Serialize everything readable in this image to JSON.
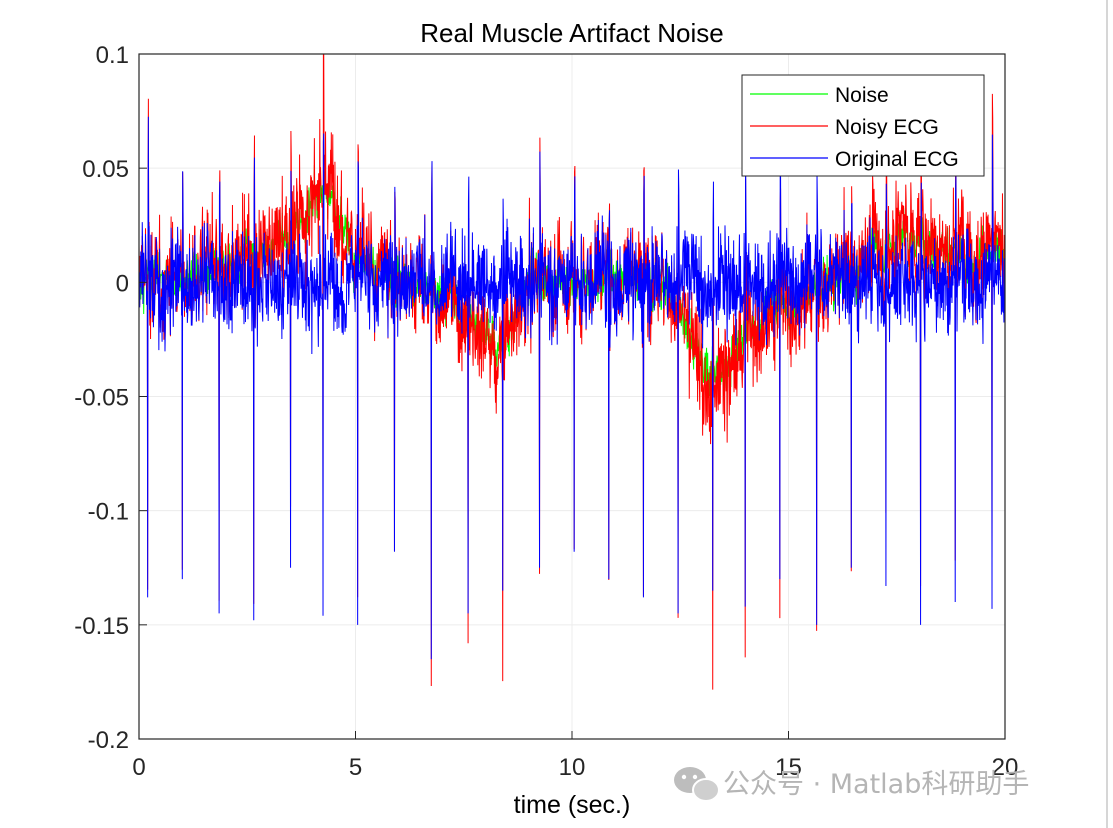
{
  "chart_data": {
    "type": "line",
    "title": "Real Muscle Artifact Noise",
    "xlabel": "time (sec.)",
    "ylabel": "",
    "xlim": [
      0,
      20
    ],
    "ylim": [
      -0.2,
      0.1
    ],
    "xticks": [
      0,
      5,
      10,
      15,
      20
    ],
    "xtick_labels": [
      "0",
      "5",
      "10",
      "15",
      "20"
    ],
    "yticks": [
      0.1,
      0.05,
      0,
      -0.05,
      -0.1,
      -0.15,
      -0.2
    ],
    "ytick_labels": [
      "0.1",
      "0.05",
      "0",
      "-0.05",
      "-0.1",
      "-0.15",
      "-0.2"
    ],
    "grid": true,
    "legend_position": "top-right",
    "r_peak_times": [
      0.2,
      1.0,
      1.85,
      2.65,
      3.5,
      4.25,
      5.05,
      5.9,
      6.75,
      7.6,
      8.4,
      9.25,
      10.05,
      10.85,
      11.65,
      12.45,
      13.25,
      14.0,
      14.8,
      15.65,
      16.45,
      17.25,
      18.05,
      18.85,
      19.7
    ],
    "series": [
      {
        "name": "Noise",
        "color": "#00ff00",
        "description_points": [
          [
            0,
            0.0
          ],
          [
            2,
            0.005
          ],
          [
            3.5,
            0.02
          ],
          [
            4.2,
            0.04
          ],
          [
            4.6,
            0.035
          ],
          [
            5.0,
            0.01
          ],
          [
            7.0,
            -0.005
          ],
          [
            8.0,
            -0.02
          ],
          [
            8.3,
            -0.03
          ],
          [
            9.0,
            0.0
          ],
          [
            12.0,
            0.005
          ],
          [
            13.3,
            -0.045
          ],
          [
            14.0,
            -0.02
          ],
          [
            16.0,
            0.0
          ],
          [
            17.5,
            0.02
          ],
          [
            20.0,
            0.01
          ]
        ]
      },
      {
        "name": "Noisy ECG",
        "color": "#ff0000",
        "peak_range": [
          -0.18,
          0.09
        ]
      },
      {
        "name": "Original ECG",
        "color": "#0000ff",
        "peak_range": [
          -0.165,
          0.075
        ]
      }
    ]
  },
  "watermark": {
    "text": "公众号 · Matlab科研助手",
    "icon": "wechat-icon"
  }
}
